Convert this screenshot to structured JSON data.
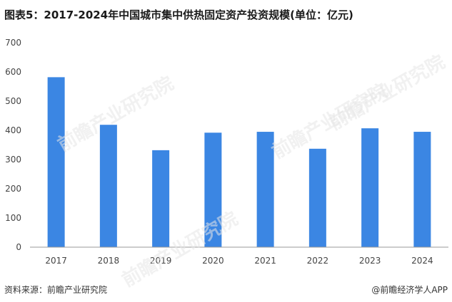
{
  "title": "图表5：2017-2024年中国城市集中供热固定资产投资规模(单位：亿元)",
  "footer": {
    "source": "资料来源：前瞻产业研究院",
    "credit": "@前瞻经济学人APP"
  },
  "watermark": "前瞻产业研究院",
  "colors": {
    "bar": "#3b86e3",
    "axis": "#999999"
  },
  "chart_data": {
    "type": "bar",
    "title": "图表5：2017-2024年中国城市集中供热固定资产投资规模(单位：亿元)",
    "xlabel": "",
    "ylabel": "",
    "categories": [
      "2017",
      "2018",
      "2019",
      "2020",
      "2021",
      "2022",
      "2023",
      "2024"
    ],
    "values": [
      582,
      419,
      332,
      392,
      395,
      337,
      407,
      395
    ],
    "ylim": [
      0,
      700
    ],
    "yticks": [
      0,
      100,
      200,
      300,
      400,
      500,
      600,
      700
    ],
    "grid": false,
    "legend": "none"
  }
}
